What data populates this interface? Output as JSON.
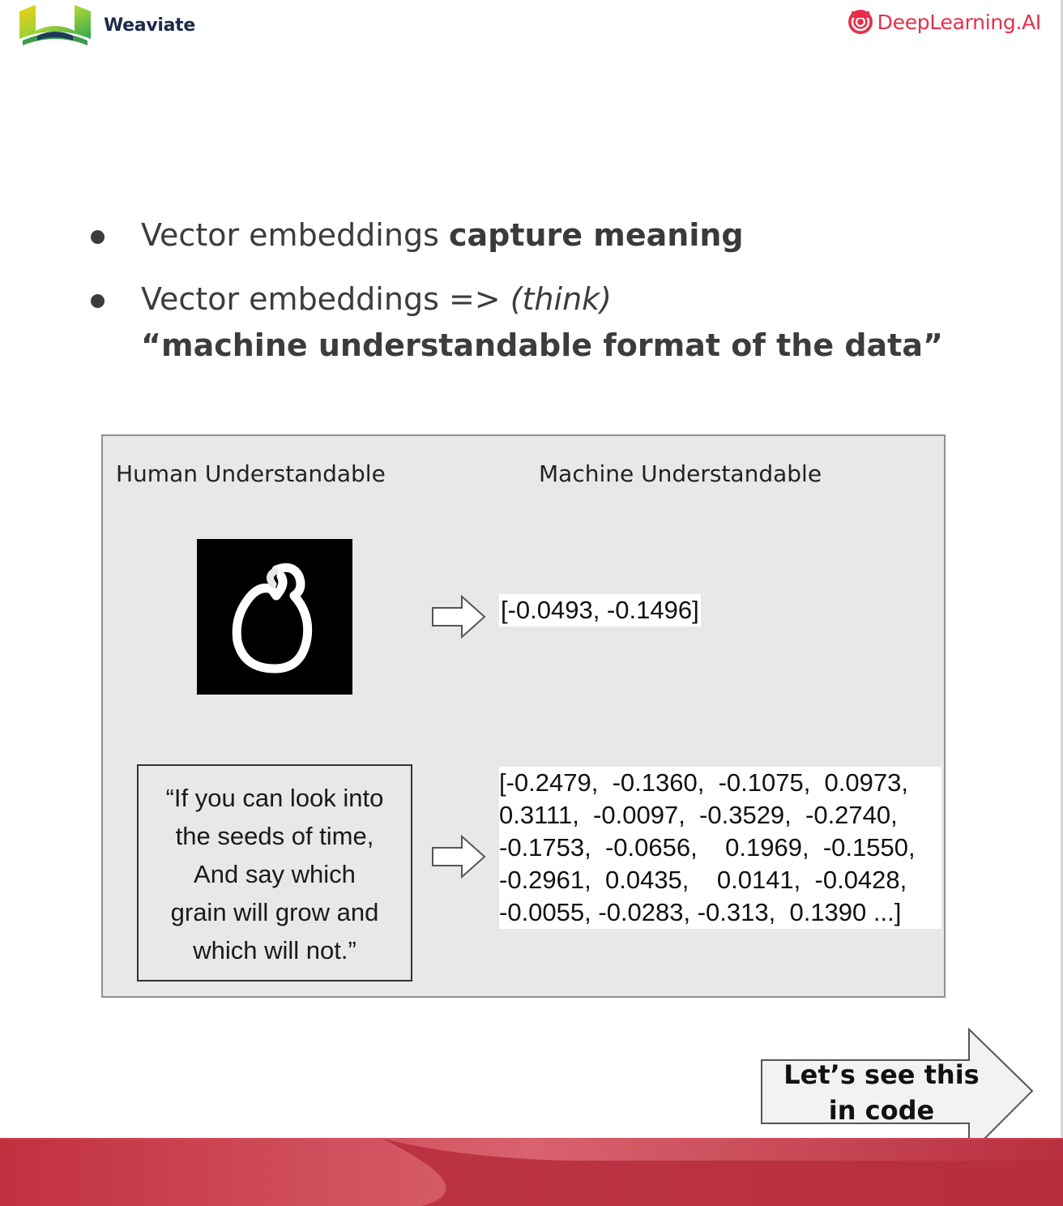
{
  "header": {
    "left_brand": "Weaviate",
    "right_brand": "DeepLearning.AI",
    "colors": {
      "weaviate_green": "#8cc63f",
      "weaviate_yellow": "#f2c20f",
      "weaviate_dark": "#1c2a4a",
      "deeplearning_red": "#e4304a"
    }
  },
  "bullets": [
    {
      "plain": "Vector embeddings ",
      "bold": "capture meaning"
    },
    {
      "plain": "Vector embeddings => ",
      "italic": "(think)",
      "bold_line": "“machine understandable format of the data”"
    }
  ],
  "panel": {
    "left_heading": "Human Understandable",
    "right_heading": "Machine Understandable",
    "image_vector": "[-0.0493, -0.1496]",
    "quote_lines": [
      "“If you can look into",
      "the seeds of time,",
      "And say which",
      "grain will grow and",
      "which will not.”"
    ],
    "text_vector_rows": [
      "[-0.2479,  -0.1360,  -0.1075,  0.0973,",
      "0.3111,  -0.0097,  -0.3529,  -0.2740,",
      "-0.1753,  -0.0656,    0.1969,  -0.1550,",
      "-0.2961,  0.0435,    0.0141,  -0.0428,",
      "-0.0055, -0.0283, -0.313,  0.1390 ...]"
    ]
  },
  "next": {
    "line1": "Let’s see this",
    "line2": "in code"
  },
  "footer": {
    "accent": "#b8303f"
  }
}
